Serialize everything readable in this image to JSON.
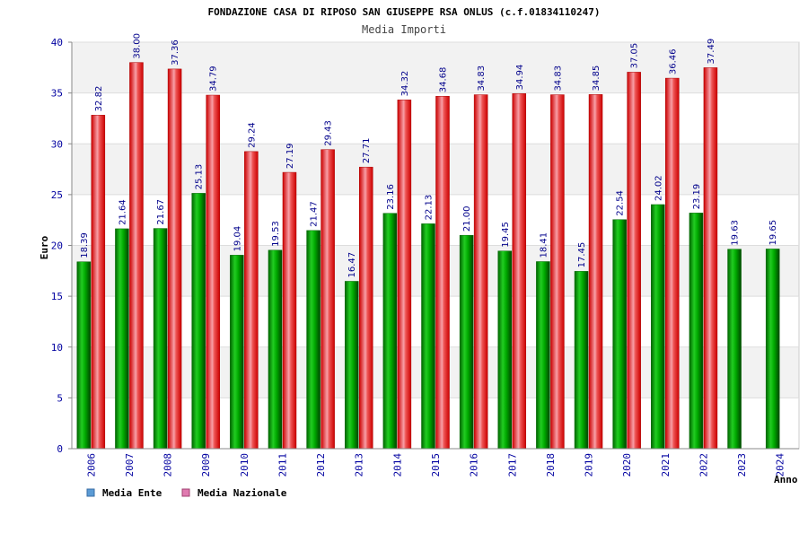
{
  "chart_data": {
    "type": "bar",
    "title": "FONDAZIONE CASA DI RIPOSO SAN GIUSEPPE RSA ONLUS (c.f.01834110247)",
    "subtitle": "Media Importi",
    "xlabel": "Anno",
    "ylabel": "Euro",
    "ylim": [
      0,
      40
    ],
    "yticks": [
      0,
      5,
      10,
      15,
      20,
      25,
      30,
      35,
      40
    ],
    "grid": true,
    "legend_position": "bottom-left",
    "categories": [
      "2006",
      "2007",
      "2008",
      "2009",
      "2010",
      "2011",
      "2012",
      "2013",
      "2014",
      "2015",
      "2016",
      "2017",
      "2018",
      "2019",
      "2020",
      "2021",
      "2022",
      "2023",
      "2024"
    ],
    "series": [
      {
        "name": "Media Ente",
        "color": "#00aa00",
        "legend_color": "#5b9bd5",
        "values": [
          18.39,
          21.64,
          21.67,
          25.13,
          19.04,
          19.53,
          21.47,
          16.47,
          23.16,
          22.13,
          21.0,
          19.45,
          18.41,
          17.45,
          22.54,
          24.02,
          23.19,
          19.63,
          19.65
        ],
        "labels": [
          "18.39",
          "21.64",
          "21.67",
          "25.13",
          "19.04",
          "19.53",
          "21.47",
          "16.47",
          "23.16",
          "22.13",
          "21.00",
          "19.45",
          "18.41",
          "17.45",
          "22.54",
          "24.02",
          "23.19",
          "19.63",
          "19.65"
        ]
      },
      {
        "name": "Media Nazionale",
        "color": "#ee2222",
        "legend_color": "#e07ab0",
        "values": [
          32.82,
          38.0,
          37.36,
          34.79,
          29.24,
          27.19,
          29.43,
          27.71,
          34.32,
          34.68,
          34.83,
          34.94,
          34.83,
          34.85,
          37.05,
          36.46,
          37.49,
          null,
          null
        ],
        "labels": [
          "32.82",
          "38.00",
          "37.36",
          "34.79",
          "29.24",
          "27.19",
          "29.43",
          "27.71",
          "34.32",
          "34.68",
          "34.83",
          "34.94",
          "34.83",
          "34.85",
          "37.05",
          "36.46",
          "37.49",
          "",
          ""
        ]
      }
    ]
  }
}
